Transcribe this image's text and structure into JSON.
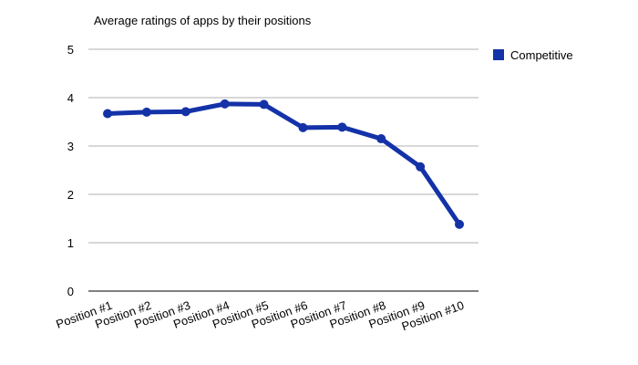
{
  "chart_data": {
    "type": "line",
    "title": "Average ratings of apps by their positions",
    "xlabel": "",
    "ylabel": "",
    "categories": [
      "Position #1",
      "Position #2",
      "Position #3",
      "Position #4",
      "Position #5",
      "Position #6",
      "Position #7",
      "Position #8",
      "Position #9",
      "Position #10"
    ],
    "series": [
      {
        "name": "Competitive",
        "values": [
          3.67,
          3.7,
          3.71,
          3.87,
          3.86,
          3.38,
          3.39,
          3.15,
          2.57,
          1.38
        ],
        "color": "#1432a8"
      }
    ],
    "ylim": [
      0,
      5
    ],
    "yticks": [
      "0",
      "1",
      "2",
      "3",
      "4",
      "5"
    ],
    "grid": true,
    "legend_position": "top-right"
  }
}
